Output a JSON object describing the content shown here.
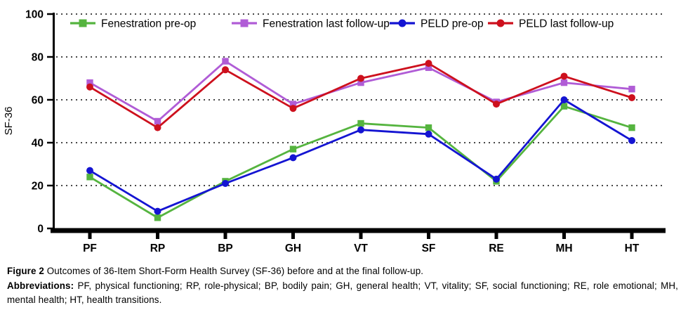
{
  "figure": {
    "caption_label": "Figure 2",
    "caption_text": "Outcomes of 36-Item Short-Form Health Survey (SF-36) before and at the final follow-up.",
    "abbrev_label": "Abbreviations:",
    "abbrev_text": "PF, physical functioning; RP, role-physical; BP, bodily pain; GH, general health; VT, vitality; SF, social functioning; RE, role emotional; MH, mental health; HT, health transitions."
  },
  "chart_data": {
    "type": "line",
    "title": "",
    "xlabel": "",
    "ylabel": "SF-36",
    "ylim": [
      0,
      100
    ],
    "yticks": [
      0,
      20,
      40,
      60,
      80,
      100
    ],
    "grid": "horizontal dotted lines at every y tick",
    "legend_position": "top-inside horizontal row",
    "categories": [
      "PF",
      "RP",
      "BP",
      "GH",
      "VT",
      "SF",
      "RE",
      "MH",
      "HT"
    ],
    "series": [
      {
        "name": "Fenestration pre-op",
        "marker": "square",
        "color": "#55b43f",
        "values": [
          24,
          5,
          22,
          37,
          49,
          47,
          22,
          57,
          47
        ]
      },
      {
        "name": "Fenestration last follow-up",
        "marker": "square",
        "color": "#b05cd6",
        "values": [
          68,
          50,
          78,
          58,
          68,
          75,
          59,
          68,
          65
        ]
      },
      {
        "name": "PELD pre-op",
        "marker": "circle",
        "color": "#1414d2",
        "values": [
          27,
          8,
          21,
          33,
          46,
          44,
          23,
          60,
          41
        ]
      },
      {
        "name": "PELD last follow-up",
        "marker": "circle",
        "color": "#cd101d",
        "values": [
          66,
          47,
          74,
          56,
          70,
          77,
          58,
          71,
          61
        ]
      }
    ],
    "colors": {
      "axis": "#000000",
      "grid_dots": "#1a1a1a",
      "text": "#000000"
    }
  }
}
